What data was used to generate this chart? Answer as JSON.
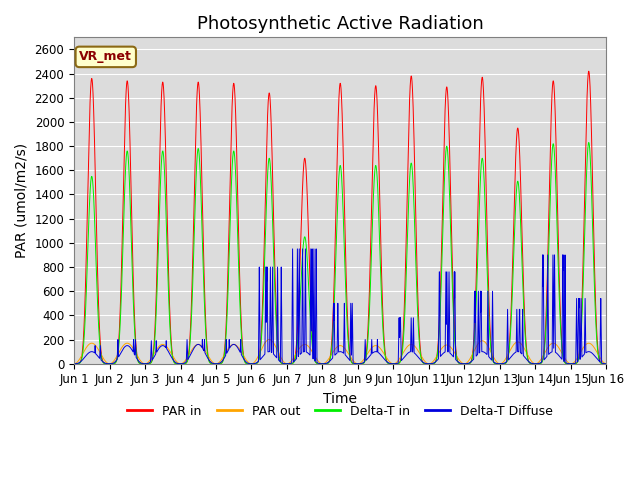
{
  "title": "Photosynthetic Active Radiation",
  "ylabel": "PAR (umol/m2/s)",
  "xlabel": "Time",
  "ylim": [
    0,
    2700
  ],
  "yticks": [
    0,
    200,
    400,
    600,
    800,
    1000,
    1200,
    1400,
    1600,
    1800,
    2000,
    2200,
    2400,
    2600
  ],
  "xtick_labels": [
    "Jun 1",
    "Jun 2",
    "Jun 3",
    "Jun 4",
    "Jun 5",
    "Jun 6",
    "Jun 7",
    "Jun 8",
    "Jun 9",
    "Jun 10",
    "Jun 11",
    "Jun 12",
    "Jun 13",
    "Jun 14",
    "Jun 15",
    "Jun 16"
  ],
  "color_PAR_in": "#ff0000",
  "color_PAR_out": "#ffa500",
  "color_Delta_T_in": "#00ee00",
  "color_Delta_T_Diffuse": "#0000dd",
  "legend_labels": [
    "PAR in",
    "PAR out",
    "Delta-T in",
    "Delta-T Diffuse"
  ],
  "annotation_text": "VR_met",
  "bg_color": "#dcdcdc",
  "title_fontsize": 13,
  "axis_fontsize": 10,
  "tick_fontsize": 8.5,
  "n_days": 15,
  "points_per_day": 288
}
